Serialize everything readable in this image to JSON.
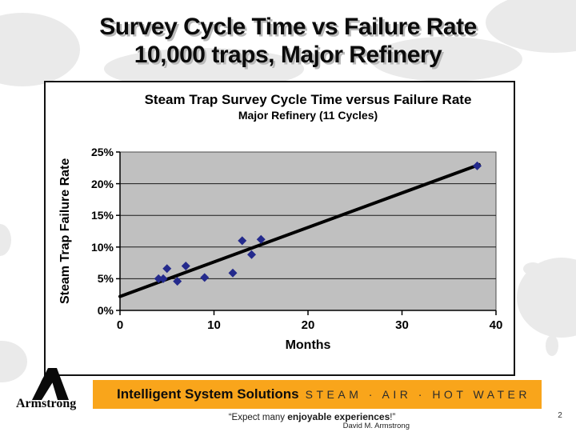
{
  "slide": {
    "title_line1": "Survey Cycle Time vs Failure Rate",
    "title_line2": "10,000 traps, Major Refinery",
    "page_number": "2"
  },
  "footer": {
    "logo_text": "Armstrong",
    "banner_left": "Intelligent System Solutions",
    "banner_right": "STEAM · AIR · HOT WATER",
    "banner_color": "#F9A51B",
    "quote_prefix": "“Expect many ",
    "quote_bold": "enjoyable experiences",
    "quote_suffix": "!”",
    "byline": "David M. Armstrong"
  },
  "chart_data": {
    "type": "scatter",
    "title": "Steam Trap Survey Cycle Time versus Failure Rate",
    "subtitle": "Major Refinery (11 Cycles)",
    "xlabel": "Months",
    "ylabel": "Steam Trap Failure Rate",
    "xlim": [
      0,
      40
    ],
    "ylim": [
      0,
      25
    ],
    "x_ticks": [
      0,
      10,
      20,
      30,
      40
    ],
    "y_ticks": [
      0,
      5,
      10,
      15,
      20,
      25
    ],
    "y_tick_suffix": "%",
    "grid": true,
    "legend": "none",
    "plot_bg": "#c0c0c0",
    "grid_color": "#1a1a1a",
    "point_color": "#242a8c",
    "trend_color": "#000000",
    "points": [
      [
        4.1,
        5.0
      ],
      [
        4.6,
        5.0
      ],
      [
        5.0,
        6.6
      ],
      [
        6.1,
        4.6
      ],
      [
        7.0,
        7.0
      ],
      [
        9.0,
        5.2
      ],
      [
        12.0,
        5.9
      ],
      [
        13.0,
        11.0
      ],
      [
        14.0,
        8.8
      ],
      [
        15.0,
        11.2
      ],
      [
        38.0,
        22.8
      ]
    ],
    "trendline": {
      "x1": 0,
      "y1": 2.2,
      "x2": 38.2,
      "y2": 23.0
    }
  }
}
